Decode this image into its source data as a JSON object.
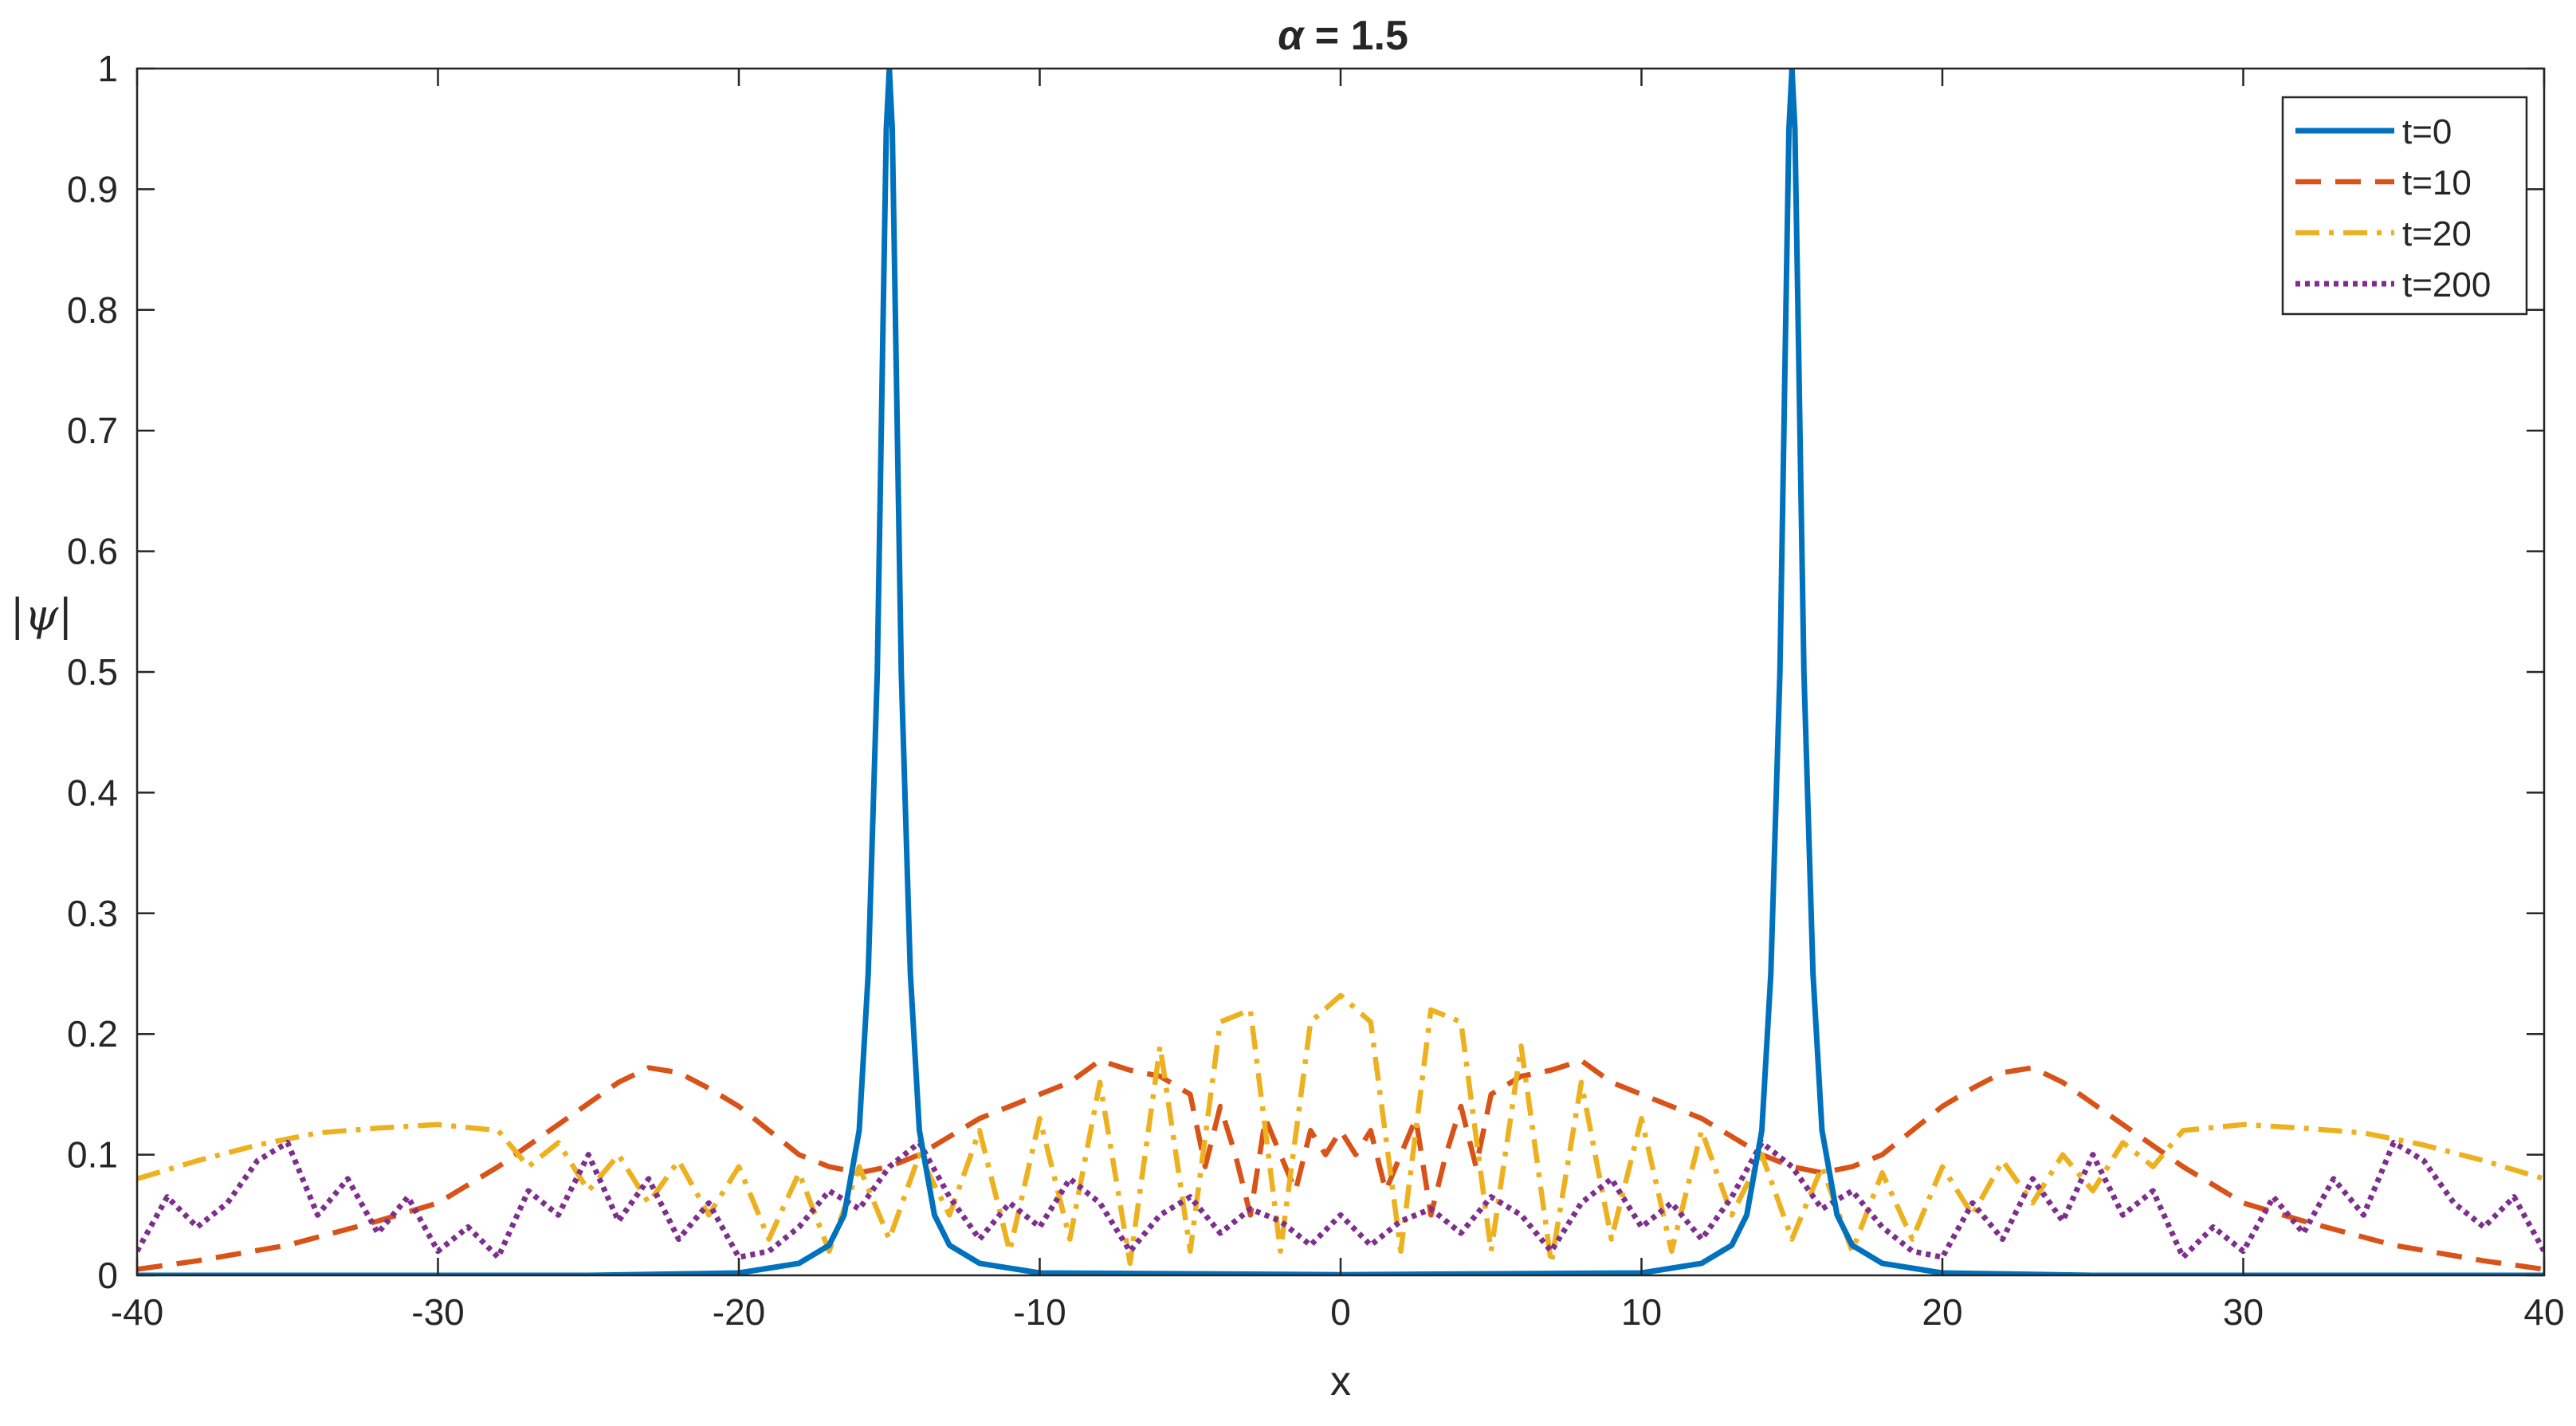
{
  "chart_data": {
    "type": "line",
    "title": "α = 1.5",
    "title_parts": {
      "symbol": "α",
      "rest": " = 1.5"
    },
    "xlabel": "x",
    "ylabel": "|ψ|",
    "xlim": [
      -40,
      40
    ],
    "ylim": [
      0,
      1
    ],
    "xticks": [
      -40,
      -30,
      -20,
      -10,
      0,
      10,
      20,
      30,
      40
    ],
    "yticks": [
      0,
      0.1,
      0.2,
      0.3,
      0.4,
      0.5,
      0.6,
      0.7,
      0.8,
      0.9,
      1
    ],
    "grid": false,
    "legend_position": "top-right",
    "series": [
      {
        "name": "t=0",
        "color": "#0072BD",
        "style": "solid",
        "x": [
          -40,
          -25,
          -20,
          -18,
          -17,
          -16.5,
          -16,
          -15.7,
          -15.4,
          -15.2,
          -15.1,
          -15,
          -14.9,
          -14.8,
          -14.6,
          -14.3,
          -14,
          -13.5,
          -13,
          -12,
          -10,
          0,
          10,
          12,
          13,
          13.5,
          14,
          14.3,
          14.6,
          14.8,
          14.9,
          15,
          15.1,
          15.2,
          15.4,
          15.7,
          16,
          16.5,
          17,
          18,
          20,
          25,
          40
        ],
        "y": [
          0,
          0,
          0.002,
          0.01,
          0.025,
          0.05,
          0.12,
          0.25,
          0.5,
          0.8,
          0.95,
          1.0,
          0.95,
          0.8,
          0.5,
          0.25,
          0.12,
          0.05,
          0.025,
          0.01,
          0.002,
          0.0005,
          0.002,
          0.01,
          0.025,
          0.05,
          0.12,
          0.25,
          0.5,
          0.8,
          0.95,
          1.0,
          0.95,
          0.8,
          0.5,
          0.25,
          0.12,
          0.05,
          0.025,
          0.01,
          0.002,
          0,
          0
        ]
      },
      {
        "name": "t=10",
        "color": "#D95319",
        "style": "dashed",
        "x": [
          -40,
          -38,
          -35,
          -32,
          -30,
          -28,
          -26,
          -24,
          -23,
          -22,
          -21,
          -20,
          -19,
          -18,
          -17,
          -16,
          -15,
          -14,
          -13,
          -12,
          -11,
          -10,
          -9,
          -8,
          -7,
          -6,
          -5,
          -4.5,
          -4,
          -3.5,
          -3,
          -2.5,
          -2,
          -1.5,
          -1,
          -0.5,
          0,
          0.5,
          1,
          1.5,
          2,
          2.5,
          3,
          3.5,
          4,
          4.5,
          5,
          6,
          7,
          8,
          9,
          10,
          11,
          12,
          13,
          14,
          15,
          16,
          17,
          18,
          19,
          20,
          21,
          22,
          23,
          24,
          26,
          28,
          30,
          32,
          35,
          38,
          40
        ],
        "y": [
          0.005,
          0.012,
          0.025,
          0.045,
          0.06,
          0.09,
          0.125,
          0.16,
          0.172,
          0.168,
          0.155,
          0.14,
          0.12,
          0.1,
          0.09,
          0.085,
          0.09,
          0.1,
          0.115,
          0.13,
          0.14,
          0.15,
          0.16,
          0.178,
          0.17,
          0.165,
          0.15,
          0.09,
          0.14,
          0.1,
          0.05,
          0.13,
          0.1,
          0.07,
          0.12,
          0.1,
          0.12,
          0.1,
          0.12,
          0.07,
          0.1,
          0.13,
          0.05,
          0.1,
          0.14,
          0.09,
          0.15,
          0.165,
          0.17,
          0.178,
          0.16,
          0.15,
          0.14,
          0.13,
          0.115,
          0.1,
          0.09,
          0.085,
          0.09,
          0.1,
          0.12,
          0.14,
          0.155,
          0.168,
          0.172,
          0.16,
          0.125,
          0.09,
          0.06,
          0.045,
          0.025,
          0.012,
          0.005
        ]
      },
      {
        "name": "t=20",
        "color": "#EDB120",
        "style": "dashdot",
        "x": [
          -40,
          -38,
          -36,
          -34,
          -32,
          -30,
          -28,
          -27,
          -26,
          -25,
          -24,
          -23,
          -22,
          -21,
          -20,
          -19,
          -18,
          -17,
          -16,
          -15,
          -14,
          -13,
          -12,
          -11,
          -10,
          -9,
          -8,
          -7,
          -6,
          -5,
          -4,
          -3,
          -2,
          -1,
          0,
          1,
          2,
          3,
          4,
          5,
          6,
          7,
          8,
          9,
          10,
          11,
          12,
          13,
          14,
          15,
          16,
          17,
          18,
          19,
          20,
          21,
          22,
          23,
          24,
          25,
          26,
          27,
          28,
          30,
          32,
          34,
          36,
          38,
          40
        ],
        "y": [
          0.08,
          0.095,
          0.108,
          0.118,
          0.122,
          0.125,
          0.12,
          0.09,
          0.11,
          0.07,
          0.1,
          0.06,
          0.095,
          0.05,
          0.09,
          0.03,
          0.085,
          0.02,
          0.09,
          0.03,
          0.1,
          0.05,
          0.12,
          0.02,
          0.13,
          0.03,
          0.16,
          0.01,
          0.19,
          0.02,
          0.21,
          0.22,
          0.02,
          0.21,
          0.232,
          0.21,
          0.02,
          0.22,
          0.21,
          0.02,
          0.19,
          0.01,
          0.16,
          0.03,
          0.13,
          0.02,
          0.12,
          0.05,
          0.1,
          0.03,
          0.09,
          0.02,
          0.085,
          0.03,
          0.09,
          0.05,
          0.095,
          0.06,
          0.1,
          0.07,
          0.11,
          0.09,
          0.12,
          0.125,
          0.122,
          0.118,
          0.108,
          0.095,
          0.08
        ]
      },
      {
        "name": "t=200",
        "color": "#7E2F8E",
        "style": "dotted",
        "x": [
          -40,
          -39,
          -38,
          -37,
          -36,
          -35,
          -34,
          -33,
          -32,
          -31,
          -30,
          -29,
          -28,
          -27,
          -26,
          -25,
          -24,
          -23,
          -22,
          -21,
          -20,
          -19,
          -18,
          -17,
          -16,
          -15,
          -14,
          -13,
          -12,
          -11,
          -10,
          -9,
          -8,
          -7,
          -6,
          -5,
          -4,
          -3,
          -2,
          -1,
          0,
          1,
          2,
          3,
          4,
          5,
          6,
          7,
          8,
          9,
          10,
          11,
          12,
          13,
          14,
          15,
          16,
          17,
          18,
          19,
          20,
          21,
          22,
          23,
          24,
          25,
          26,
          27,
          28,
          29,
          30,
          31,
          32,
          33,
          34,
          35,
          36,
          37,
          38,
          39,
          40
        ],
        "y": [
          0.02,
          0.065,
          0.04,
          0.06,
          0.095,
          0.11,
          0.05,
          0.08,
          0.035,
          0.065,
          0.02,
          0.04,
          0.015,
          0.07,
          0.05,
          0.1,
          0.045,
          0.08,
          0.03,
          0.06,
          0.015,
          0.02,
          0.04,
          0.07,
          0.055,
          0.09,
          0.11,
          0.065,
          0.03,
          0.06,
          0.04,
          0.08,
          0.06,
          0.02,
          0.05,
          0.065,
          0.035,
          0.055,
          0.045,
          0.025,
          0.05,
          0.025,
          0.045,
          0.055,
          0.035,
          0.065,
          0.05,
          0.02,
          0.06,
          0.08,
          0.04,
          0.06,
          0.03,
          0.065,
          0.11,
          0.09,
          0.055,
          0.07,
          0.04,
          0.02,
          0.015,
          0.06,
          0.03,
          0.08,
          0.045,
          0.1,
          0.05,
          0.07,
          0.015,
          0.04,
          0.02,
          0.065,
          0.035,
          0.08,
          0.05,
          0.11,
          0.095,
          0.06,
          0.04,
          0.065,
          0.02
        ]
      }
    ]
  }
}
